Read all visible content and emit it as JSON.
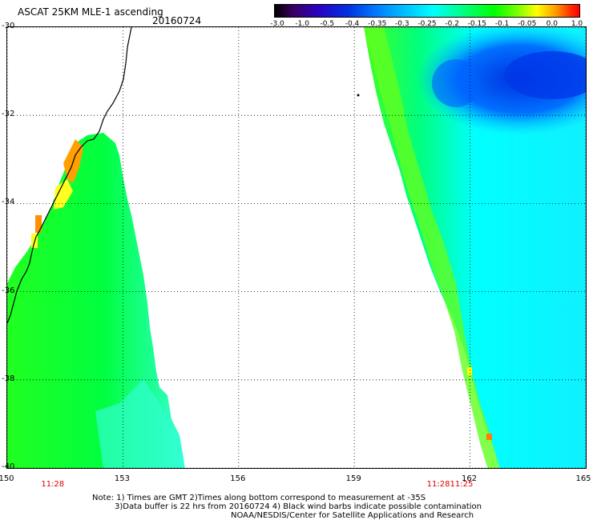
{
  "header": {
    "title": "ASCAT 25KM MLE-1 ascending",
    "date": "20160724"
  },
  "colorbar": {
    "tick_labels": [
      "-3.0",
      "-1.0",
      "-0.5",
      "-0.4",
      "-0.35",
      "-0.3",
      "-0.25",
      "-0.2",
      "-0.15",
      "-0.1",
      "-0.05",
      "0.0",
      "1.0"
    ]
  },
  "map": {
    "lon_ticks": [
      "150",
      "153",
      "156",
      "159",
      "162",
      "165"
    ],
    "lat_ticks": [
      "-30",
      "-32",
      "-34",
      "-36",
      "-38",
      "-40"
    ],
    "lon_range": [
      150,
      165
    ],
    "lat_range": [
      -40,
      -30
    ],
    "grid": true,
    "pass_times": [
      {
        "label": "11:28",
        "lon": 151.2
      },
      {
        "label": "11:28",
        "lon": 161.2
      },
      {
        "label": "11:25",
        "lon": 161.8
      }
    ],
    "colors": {
      "swath_green": "#00ff40",
      "swath_cyan": "#00ffff",
      "swath_blue": "#0050f0",
      "swath_orange": "#ff9000",
      "swath_yellow": "#ffff00",
      "time_label": "#e00000"
    }
  },
  "notes": {
    "line1": "Note: 1) Times are GMT 2)Times along bottom correspond to measurement at -35S",
    "line2": "3)Data buffer is 22 hrs from 20160724 4) Black wind barbs indicate possible contamination",
    "line3": "NOAA/NESDIS/Center for Satellite Applications and Research"
  }
}
